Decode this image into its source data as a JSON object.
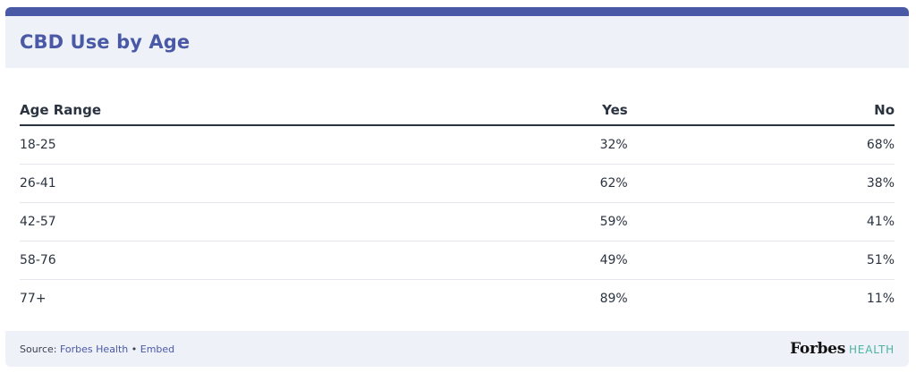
{
  "title": "CBD Use by Age",
  "chart_data": {
    "type": "table",
    "columns": [
      "Age Range",
      "Yes",
      "No"
    ],
    "rows": [
      {
        "age": "18-25",
        "yes": "32%",
        "no": "68%"
      },
      {
        "age": "26-41",
        "yes": "62%",
        "no": "38%"
      },
      {
        "age": "42-57",
        "yes": "59%",
        "no": "41%"
      },
      {
        "age": "58-76",
        "yes": "49%",
        "no": "51%"
      },
      {
        "age": "77+",
        "yes": "89%",
        "no": "11%"
      }
    ]
  },
  "footer": {
    "source_label": "Source: ",
    "source_link": "Forbes Health",
    "separator": " • ",
    "embed_link": "Embed",
    "brand_forbes": "Forbes",
    "brand_health": "HEALTH"
  },
  "colors": {
    "accent": "#4a59a6",
    "header_bg": "#eef1f8",
    "health_green": "#4bb3a0"
  }
}
